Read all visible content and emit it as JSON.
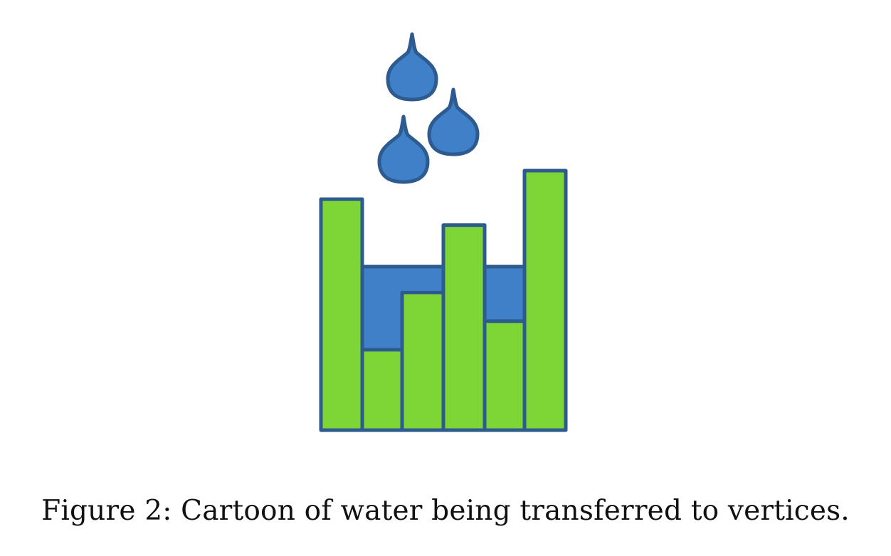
{
  "caption": "Figure 2: Cartoon of water being transferred to vertices.",
  "colors": {
    "bar_fill": "#7ed636",
    "water_fill": "#3f80c8",
    "outline": "#2d5a8f",
    "caption_text": "#111111"
  },
  "diagram": {
    "bars": [
      {
        "name": "bar-1",
        "level": 0.89
      },
      {
        "name": "bar-2",
        "level": 0.31
      },
      {
        "name": "bar-3",
        "level": 0.53
      },
      {
        "name": "bar-4",
        "level": 0.79
      },
      {
        "name": "bar-5",
        "level": 0.42
      },
      {
        "name": "bar-6",
        "level": 1.0
      }
    ],
    "water_pools": [
      {
        "name": "water-pool-left",
        "from_bar": 1,
        "to_bar": 2,
        "level": 0.63
      },
      {
        "name": "water-pool-right",
        "from_bar": 4,
        "to_bar": 4,
        "level": 0.63
      }
    ],
    "drops": [
      {
        "name": "water-drop-top"
      },
      {
        "name": "water-drop-right"
      },
      {
        "name": "water-drop-left"
      }
    ]
  }
}
